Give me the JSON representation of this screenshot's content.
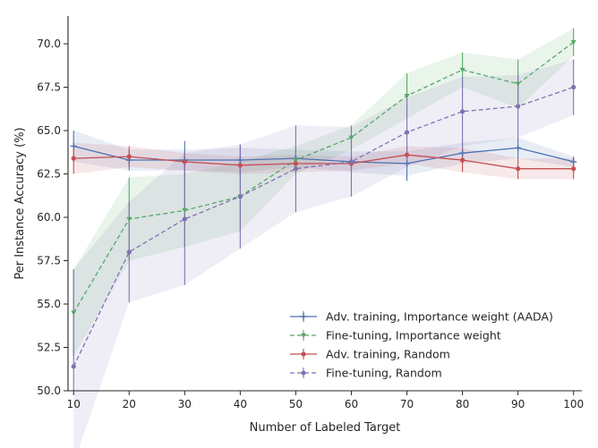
{
  "chart_data": {
    "type": "line",
    "title": "",
    "xlabel": "Number of Labeled Target",
    "ylabel": "Per Instance Accuracy (%)",
    "xlim": [
      9,
      101.5
    ],
    "ylim": [
      50.0,
      71.6
    ],
    "x": [
      10,
      20,
      30,
      40,
      50,
      60,
      70,
      80,
      90,
      100
    ],
    "xticks": [
      "10",
      "20",
      "30",
      "40",
      "50",
      "60",
      "70",
      "80",
      "90",
      "100"
    ],
    "yticks": [
      "50.0",
      "52.5",
      "55.0",
      "57.5",
      "60.0",
      "62.5",
      "65.0",
      "67.5",
      "70.0"
    ],
    "grid": false,
    "legend_position": "lower-right",
    "series": [
      {
        "name": "Adv. training, Importance weight (AADA)",
        "color": "#4c72b0",
        "dashed": false,
        "marker": "+",
        "values": [
          64.1,
          63.3,
          63.3,
          63.3,
          63.4,
          63.2,
          63.1,
          63.7,
          64.0,
          63.2
        ],
        "error": [
          0.9,
          0.6,
          1.1,
          0.9,
          0.5,
          0.6,
          1.0,
          0.6,
          0.6,
          0.3
        ],
        "band": [
          0.9,
          0.6,
          0.6,
          0.7,
          0.5,
          0.6,
          0.7,
          0.6,
          0.6,
          0.3
        ]
      },
      {
        "name": "Fine-tuning, Importance weight",
        "color": "#55a868",
        "dashed": true,
        "marker": "v",
        "values": [
          54.5,
          59.9,
          60.4,
          61.2,
          63.3,
          64.6,
          67.0,
          68.5,
          67.7,
          70.1
        ],
        "error": [
          2.5,
          2.4,
          2.1,
          2.0,
          0.8,
          0.7,
          1.3,
          1.0,
          1.4,
          0.8
        ],
        "band": [
          2.5,
          2.4,
          2.1,
          2.0,
          0.8,
          0.7,
          1.3,
          1.0,
          1.4,
          0.8
        ]
      },
      {
        "name": "Adv. training, Random",
        "color": "#c44e52",
        "dashed": false,
        "marker": "o",
        "values": [
          63.4,
          63.5,
          63.2,
          63.0,
          63.1,
          63.1,
          63.6,
          63.3,
          62.8,
          62.8
        ],
        "error": [
          0.9,
          0.6,
          0.5,
          0.5,
          0.5,
          0.4,
          0.5,
          0.7,
          0.6,
          0.6
        ],
        "band": [
          0.9,
          0.6,
          0.5,
          0.5,
          0.5,
          0.4,
          0.5,
          0.7,
          0.6,
          0.6
        ]
      },
      {
        "name": "Fine-tuning, Random",
        "color": "#8172b2",
        "dashed": true,
        "marker": "o",
        "values": [
          51.4,
          58.0,
          59.9,
          61.2,
          62.8,
          63.2,
          64.9,
          66.1,
          66.4,
          67.5
        ],
        "error": [
          5.6,
          2.9,
          3.8,
          3.0,
          2.5,
          2.0,
          2.0,
          2.0,
          1.8,
          1.6
        ],
        "band": [
          5.6,
          2.9,
          3.8,
          3.0,
          2.5,
          2.0,
          2.0,
          2.0,
          1.8,
          1.6
        ]
      }
    ]
  }
}
